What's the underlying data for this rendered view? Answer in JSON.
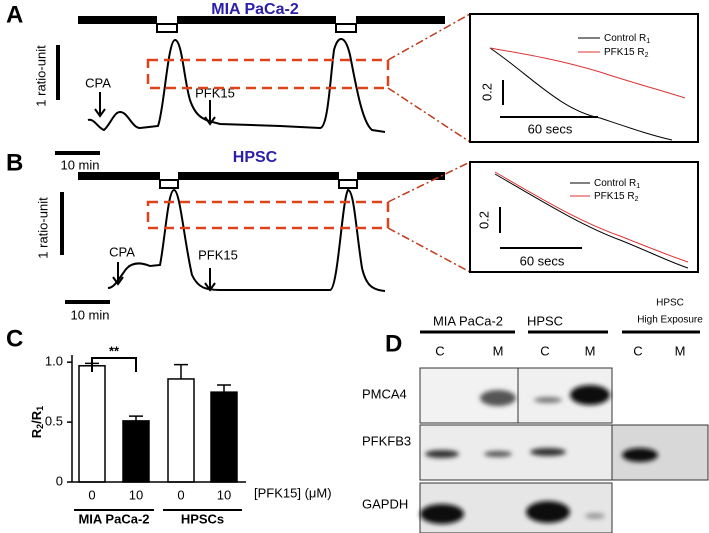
{
  "panel_labels": [
    "A",
    "B",
    "C",
    "D"
  ],
  "panel_a": {
    "title": "MIA PaCa-2",
    "scale_y": "1 ratio-unit",
    "scale_x": "10 min",
    "arrow_1": "CPA",
    "arrow_2": "PFK15",
    "inset": {
      "legend": [
        {
          "text": "Control R",
          "sub": "1"
        },
        {
          "text": "PFK15 R",
          "sub": "2"
        }
      ],
      "scale_y": "0.2",
      "scale_x": "60 secs"
    }
  },
  "panel_b": {
    "title": "HPSC",
    "scale_y": "1 ratio-unit",
    "scale_x": "10 min",
    "arrow_1": "CPA",
    "arrow_2": "PFK15",
    "inset": {
      "legend": [
        {
          "text": "Control R",
          "sub": "1"
        },
        {
          "text": "PFK15 R",
          "sub": "2"
        }
      ],
      "scale_y": "0.2",
      "scale_x": "60 secs"
    }
  },
  "chart_data": {
    "type": "bar",
    "y_label": {
      "text": "R",
      "sub_1": "2",
      "mid": "/R",
      "sub_2": "1"
    },
    "categories": [
      "0",
      "10",
      "0",
      "10"
    ],
    "values": [
      0.97,
      0.51,
      0.86,
      0.75
    ],
    "errors": [
      0.02,
      0.04,
      0.12,
      0.06
    ],
    "colors": [
      "#ffffff",
      "#000000",
      "#ffffff",
      "#000000"
    ],
    "groups": [
      "MIA PaCa-2",
      "HPSCs"
    ],
    "x_label": "[PFK15] (μM)",
    "significance": "**",
    "ylim": [
      0,
      1.06
    ],
    "yticks": [
      0,
      0.5,
      {
        "value": 1,
        "label": "1.0"
      }
    ]
  },
  "panel_d": {
    "columns": [
      "MIA PaCa-2",
      "HPSC"
    ],
    "high_exposure": [
      "HPSC",
      "High Exposure"
    ],
    "lanes": [
      "C",
      "M",
      "C",
      "M",
      "C",
      "M"
    ],
    "rows": [
      "PMCA4",
      "PFKFB3",
      "GAPDH"
    ]
  }
}
